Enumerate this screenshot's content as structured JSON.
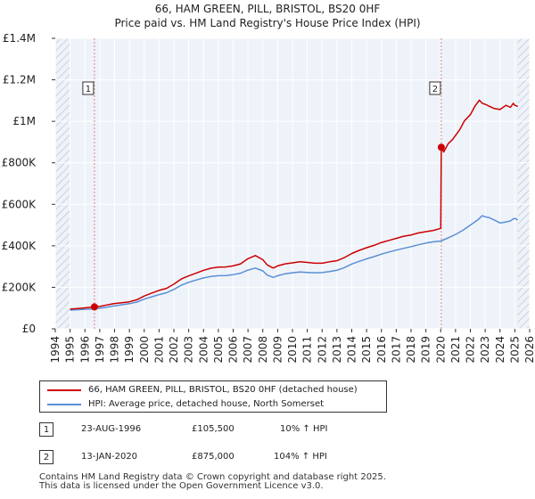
{
  "chart_data": {
    "type": "line",
    "title": "66, HAM GREEN, PILL, BRISTOL, BS20 0HF",
    "subtitle": "Price paid vs. HM Land Registry's House Price Index (HPI)",
    "xlim": [
      1994,
      2026
    ],
    "ylim": [
      0,
      1400000
    ],
    "x_ticks": [
      "1994",
      "1995",
      "1996",
      "1997",
      "1998",
      "1999",
      "2000",
      "2001",
      "2002",
      "2003",
      "2004",
      "2005",
      "2006",
      "2007",
      "2008",
      "2009",
      "2010",
      "2011",
      "2012",
      "2013",
      "2014",
      "2015",
      "2016",
      "2017",
      "2018",
      "2019",
      "2020",
      "2021",
      "2022",
      "2023",
      "2024",
      "2025",
      "2026"
    ],
    "y_ticks": [
      {
        "value": 0,
        "label": "£0"
      },
      {
        "value": 200000,
        "label": "£200K"
      },
      {
        "value": 400000,
        "label": "£400K"
      },
      {
        "value": 600000,
        "label": "£600K"
      },
      {
        "value": 800000,
        "label": "£800K"
      },
      {
        "value": 1000000,
        "label": "£1M"
      },
      {
        "value": 1200000,
        "label": "£1.2M"
      },
      {
        "value": 1400000,
        "label": "£1.4M"
      }
    ],
    "grid": true,
    "series": [
      {
        "name": "66, HAM GREEN, PILL, BRISTOL, BS20 0HF (detached house)",
        "color": "#cc0000",
        "x": [
          1995.0,
          1995.5,
          1996.0,
          1996.64,
          1997.0,
          1997.5,
          1998.0,
          1998.5,
          1999.0,
          1999.5,
          2000.0,
          2000.5,
          2001.0,
          2001.5,
          2002.0,
          2002.5,
          2003.0,
          2003.5,
          2004.0,
          2004.5,
          2005.0,
          2005.5,
          2006.0,
          2006.5,
          2007.0,
          2007.5,
          2008.0,
          2008.3,
          2008.7,
          2009.0,
          2009.5,
          2010.0,
          2010.5,
          2011.0,
          2011.5,
          2012.0,
          2012.5,
          2013.0,
          2013.5,
          2014.0,
          2014.5,
          2015.0,
          2015.5,
          2016.0,
          2016.5,
          2017.0,
          2017.5,
          2018.0,
          2018.5,
          2019.0,
          2019.5,
          2020.0,
          2020.04,
          2020.2,
          2020.5,
          2020.8,
          2021.0,
          2021.3,
          2021.6,
          2022.0,
          2022.3,
          2022.6,
          2022.8,
          2023.0,
          2023.3,
          2023.6,
          2024.0,
          2024.4,
          2024.7,
          2024.9,
          2025.0,
          2025.2
        ],
        "values": [
          95000,
          98000,
          101000,
          105500,
          108000,
          115000,
          122000,
          126000,
          130000,
          140000,
          158000,
          172000,
          185000,
          195000,
          215000,
          240000,
          255000,
          268000,
          282000,
          292000,
          297000,
          298000,
          303000,
          313000,
          338000,
          353000,
          333000,
          308000,
          293000,
          303000,
          313000,
          318000,
          323000,
          320000,
          316000,
          316000,
          323000,
          328000,
          343000,
          363000,
          378000,
          391000,
          402000,
          416000,
          426000,
          436000,
          446000,
          452000,
          462000,
          468000,
          474000,
          484000,
          875000,
          852000,
          892000,
          912000,
          932000,
          962000,
          1002000,
          1032000,
          1072000,
          1102000,
          1087000,
          1082000,
          1072000,
          1062000,
          1057000,
          1077000,
          1067000,
          1087000,
          1077000,
          1072000
        ]
      },
      {
        "name": "HPI: Average price, detached house, North Somerset",
        "color": "#5b8fd4",
        "x": [
          1995.0,
          1995.5,
          1996.0,
          1996.64,
          1997.0,
          1997.5,
          1998.0,
          1998.5,
          1999.0,
          1999.5,
          2000.0,
          2000.5,
          2001.0,
          2001.5,
          2002.0,
          2002.5,
          2003.0,
          2003.5,
          2004.0,
          2004.5,
          2005.0,
          2005.5,
          2006.0,
          2006.5,
          2007.0,
          2007.5,
          2008.0,
          2008.3,
          2008.7,
          2009.0,
          2009.5,
          2010.0,
          2010.5,
          2011.0,
          2011.5,
          2012.0,
          2012.5,
          2013.0,
          2013.5,
          2014.0,
          2014.5,
          2015.0,
          2015.5,
          2016.0,
          2016.5,
          2017.0,
          2017.5,
          2018.0,
          2018.5,
          2019.0,
          2019.5,
          2020.0,
          2020.5,
          2021.0,
          2021.5,
          2022.0,
          2022.5,
          2022.8,
          2023.0,
          2023.3,
          2023.6,
          2024.0,
          2024.4,
          2024.7,
          2024.9,
          2025.0,
          2025.2
        ],
        "values": [
          90000,
          92000,
          94000,
          96000,
          99000,
          105000,
          111000,
          116000,
          121000,
          129000,
          143000,
          154000,
          165000,
          174000,
          190000,
          210000,
          224000,
          235000,
          245000,
          252000,
          256000,
          257000,
          261000,
          268000,
          283000,
          293000,
          279000,
          259000,
          248000,
          256000,
          265000,
          270000,
          274000,
          272000,
          270000,
          271000,
          276000,
          282000,
          295000,
          312000,
          325000,
          337000,
          348000,
          360000,
          370000,
          379000,
          388000,
          396000,
          405000,
          413000,
          419000,
          423000,
          438000,
          455000,
          475000,
          500000,
          525000,
          545000,
          540000,
          535000,
          525000,
          510000,
          515000,
          520000,
          530000,
          532000,
          525000
        ]
      }
    ],
    "annotations": [
      {
        "label": "1",
        "x": 1996.64,
        "value": 105500
      },
      {
        "label": "2",
        "x": 2020.04,
        "value": 875000
      }
    ]
  },
  "legend": {
    "series1": "66, HAM GREEN, PILL, BRISTOL, BS20 0HF (detached house)",
    "series2": "HPI: Average price, detached house, North Somerset"
  },
  "transactions": [
    {
      "num": "1",
      "date": "23-AUG-1996",
      "price": "£105,500",
      "hpi": "10% ↑ HPI"
    },
    {
      "num": "2",
      "date": "13-JAN-2020",
      "price": "£875,000",
      "hpi": "104% ↑ HPI"
    }
  ],
  "footer": {
    "line1": "Contains HM Land Registry data © Crown copyright and database right 2025.",
    "line2": "This data is licensed under the Open Government Licence v3.0."
  }
}
